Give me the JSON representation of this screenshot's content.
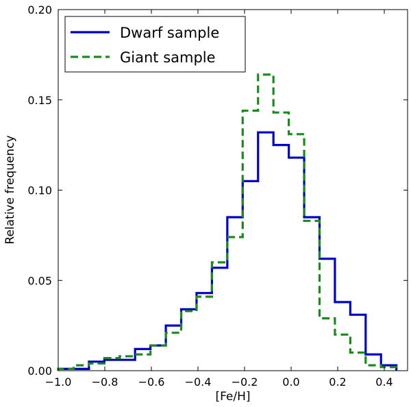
{
  "chart_data": {
    "type": "histogram",
    "title": "",
    "xlabel": "[Fe/H]",
    "ylabel": "Relative frequency",
    "xlim": [
      -1.0,
      0.5
    ],
    "ylim": [
      0.0,
      0.2
    ],
    "x_ticks": [
      -1.0,
      -0.8,
      -0.6,
      -0.4,
      -0.2,
      0.0,
      0.2,
      0.4
    ],
    "x_tick_labels": [
      "−1.0",
      "−0.8",
      "−0.6",
      "−0.4",
      "−0.2",
      "0.0",
      "0.2",
      "0.4"
    ],
    "y_ticks": [
      0.0,
      0.05,
      0.1,
      0.15,
      0.2
    ],
    "y_tick_labels": [
      "0.00",
      "0.05",
      "0.10",
      "0.15",
      "0.20"
    ],
    "legend_position": "top-left",
    "bin_edges": [
      -1.0,
      -0.934,
      -0.868,
      -0.802,
      -0.736,
      -0.67,
      -0.604,
      -0.538,
      -0.472,
      -0.406,
      -0.34,
      -0.274,
      -0.208,
      -0.142,
      -0.076,
      -0.01,
      0.056,
      0.122,
      0.188,
      0.254,
      0.32,
      0.386,
      0.452
    ],
    "series": [
      {
        "name": "Dwarf sample",
        "color": "#0000cc",
        "style": "solid",
        "values": [
          0.001,
          0.001,
          0.005,
          0.006,
          0.006,
          0.012,
          0.014,
          0.025,
          0.034,
          0.043,
          0.057,
          0.085,
          0.105,
          0.132,
          0.125,
          0.118,
          0.085,
          0.062,
          0.038,
          0.031,
          0.009,
          0.003
        ]
      },
      {
        "name": "Giant sample",
        "color": "#1a8a1a",
        "style": "dashed",
        "values": [
          0.001,
          0.003,
          0.004,
          0.007,
          0.008,
          0.009,
          0.014,
          0.021,
          0.033,
          0.041,
          0.06,
          0.074,
          0.144,
          0.164,
          0.143,
          0.131,
          0.083,
          0.029,
          0.02,
          0.01,
          0.003,
          0.002
        ]
      }
    ]
  }
}
